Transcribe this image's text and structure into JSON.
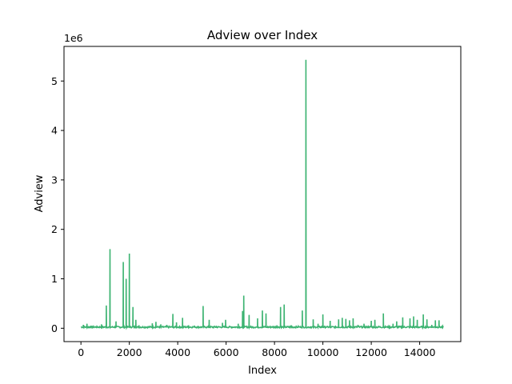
{
  "chart_data": {
    "type": "line",
    "title": "Adview over Index",
    "xlabel": "Index",
    "ylabel": "Adview",
    "offset_label": "1e6",
    "xlim": [
      -700,
      15700
    ],
    "ylim": [
      -0.27,
      5.7
    ],
    "xticks": [
      0,
      2000,
      4000,
      6000,
      8000,
      10000,
      12000,
      14000
    ],
    "yticks": [
      0,
      1,
      2,
      3,
      4,
      5
    ],
    "grid": false,
    "legend": "none",
    "line_color": "#3cb371",
    "baseline_level": 0.02,
    "baseline_range": [
      0,
      14999
    ],
    "spikes": [
      {
        "x": 100,
        "y": 0.07
      },
      {
        "x": 250,
        "y": 0.09
      },
      {
        "x": 400,
        "y": 0.05
      },
      {
        "x": 850,
        "y": 0.08
      },
      {
        "x": 1050,
        "y": 0.46
      },
      {
        "x": 1200,
        "y": 1.6
      },
      {
        "x": 1450,
        "y": 0.14
      },
      {
        "x": 1750,
        "y": 1.34
      },
      {
        "x": 1870,
        "y": 1.0
      },
      {
        "x": 2000,
        "y": 1.51
      },
      {
        "x": 2150,
        "y": 0.43
      },
      {
        "x": 2270,
        "y": 0.17
      },
      {
        "x": 2400,
        "y": 0.06
      },
      {
        "x": 2950,
        "y": 0.1
      },
      {
        "x": 3100,
        "y": 0.13
      },
      {
        "x": 3300,
        "y": 0.08
      },
      {
        "x": 3550,
        "y": 0.07
      },
      {
        "x": 3800,
        "y": 0.29
      },
      {
        "x": 3950,
        "y": 0.12
      },
      {
        "x": 4200,
        "y": 0.21
      },
      {
        "x": 4450,
        "y": 0.06
      },
      {
        "x": 4700,
        "y": 0.05
      },
      {
        "x": 5050,
        "y": 0.45
      },
      {
        "x": 5300,
        "y": 0.17
      },
      {
        "x": 5600,
        "y": 0.05
      },
      {
        "x": 5850,
        "y": 0.11
      },
      {
        "x": 5980,
        "y": 0.17
      },
      {
        "x": 6500,
        "y": 0.09
      },
      {
        "x": 6680,
        "y": 0.35
      },
      {
        "x": 6730,
        "y": 0.66
      },
      {
        "x": 6950,
        "y": 0.27
      },
      {
        "x": 7300,
        "y": 0.2
      },
      {
        "x": 7500,
        "y": 0.36
      },
      {
        "x": 7650,
        "y": 0.3
      },
      {
        "x": 7900,
        "y": 0.04
      },
      {
        "x": 8100,
        "y": 0.06
      },
      {
        "x": 8250,
        "y": 0.43
      },
      {
        "x": 8400,
        "y": 0.48
      },
      {
        "x": 8700,
        "y": 0.06
      },
      {
        "x": 9000,
        "y": 0.04
      },
      {
        "x": 9150,
        "y": 0.36
      },
      {
        "x": 9300,
        "y": 5.43
      },
      {
        "x": 9600,
        "y": 0.18
      },
      {
        "x": 9800,
        "y": 0.09
      },
      {
        "x": 10000,
        "y": 0.28
      },
      {
        "x": 10300,
        "y": 0.15
      },
      {
        "x": 10650,
        "y": 0.18
      },
      {
        "x": 10800,
        "y": 0.21
      },
      {
        "x": 10950,
        "y": 0.19
      },
      {
        "x": 11100,
        "y": 0.16
      },
      {
        "x": 11250,
        "y": 0.2
      },
      {
        "x": 11450,
        "y": 0.07
      },
      {
        "x": 11700,
        "y": 0.09
      },
      {
        "x": 12000,
        "y": 0.15
      },
      {
        "x": 12150,
        "y": 0.17
      },
      {
        "x": 12500,
        "y": 0.3
      },
      {
        "x": 12900,
        "y": 0.09
      },
      {
        "x": 13050,
        "y": 0.14
      },
      {
        "x": 13300,
        "y": 0.22
      },
      {
        "x": 13600,
        "y": 0.2
      },
      {
        "x": 13750,
        "y": 0.24
      },
      {
        "x": 13900,
        "y": 0.17
      },
      {
        "x": 14150,
        "y": 0.28
      },
      {
        "x": 14300,
        "y": 0.18
      },
      {
        "x": 14500,
        "y": 0.07
      },
      {
        "x": 14650,
        "y": 0.16
      },
      {
        "x": 14800,
        "y": 0.16
      },
      {
        "x": 14950,
        "y": 0.06
      }
    ]
  }
}
